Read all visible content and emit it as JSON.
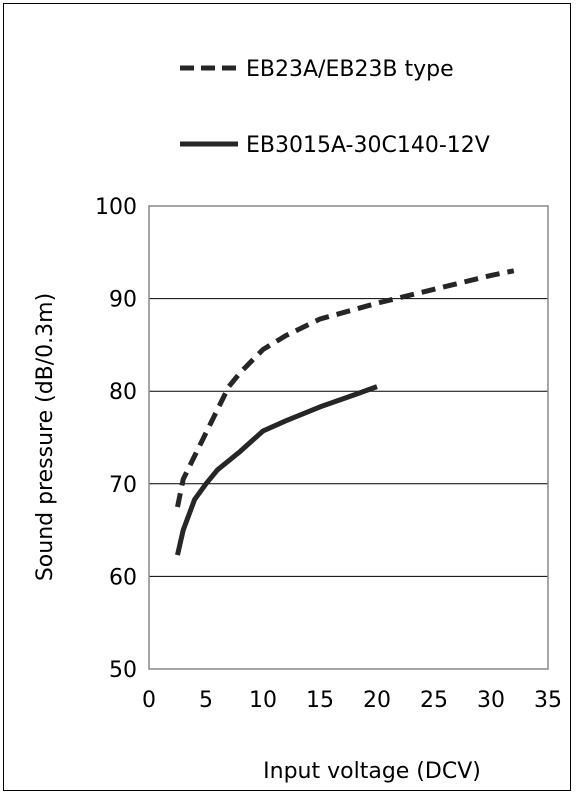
{
  "chart_data": {
    "type": "line",
    "xlabel": "Input voltage (DCV)",
    "ylabel": "Sound pressure (dB/0.3m)",
    "xlim": [
      0,
      35
    ],
    "ylim": [
      50,
      100
    ],
    "xticks": [
      0,
      5,
      10,
      15,
      20,
      25,
      30,
      35
    ],
    "yticks": [
      50,
      60,
      70,
      80,
      90,
      100
    ],
    "grid": "horizontal",
    "legend_position": "top",
    "series": [
      {
        "name": "EB23A/EB23B type",
        "style": "dashed",
        "color": "#262626",
        "x": [
          2.5,
          3,
          4,
          5,
          6,
          7,
          8,
          10,
          12,
          15,
          20,
          25,
          30,
          32
        ],
        "y": [
          67.5,
          70.5,
          73,
          75.5,
          78,
          80.5,
          82,
          84.5,
          86,
          87.8,
          89.5,
          91,
          92.5,
          93
        ]
      },
      {
        "name": "EB3015A-30C140-12V",
        "style": "solid",
        "color": "#262626",
        "x": [
          2.5,
          3,
          4,
          5,
          6,
          8,
          10,
          12,
          15,
          18,
          20
        ],
        "y": [
          62.3,
          65,
          68.3,
          70,
          71.5,
          73.5,
          75.7,
          76.8,
          78.3,
          79.6,
          80.5
        ]
      }
    ]
  }
}
